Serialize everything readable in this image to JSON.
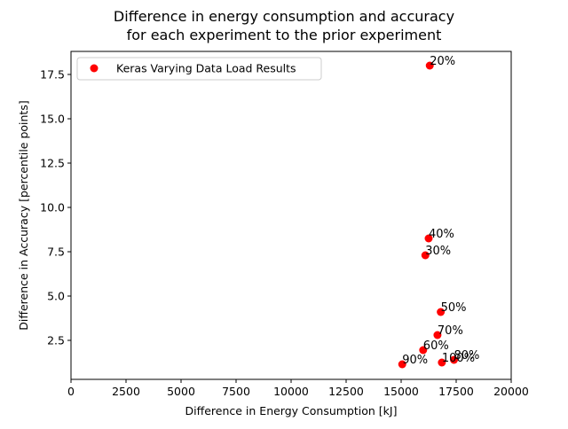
{
  "chart_data": {
    "type": "scatter",
    "title": [
      "Difference in energy consumption and accuracy",
      "for each experiment to the prior experiment"
    ],
    "xlabel": "Difference in Energy Consumption [kJ]",
    "ylabel": "Difference in Accuracy [percentile points]",
    "xlim": [
      0,
      20000
    ],
    "ylim": [
      0.3,
      18.8
    ],
    "xticks": [
      0,
      2500,
      5000,
      7500,
      10000,
      12500,
      15000,
      17500,
      20000
    ],
    "xtick_labels": [
      "0",
      "2500",
      "5000",
      "7500",
      "10000",
      "12500",
      "15000",
      "17500",
      "20000"
    ],
    "yticks": [
      2.5,
      5.0,
      7.5,
      10.0,
      12.5,
      15.0,
      17.5
    ],
    "ytick_labels": [
      "2.5",
      "5.0",
      "7.5",
      "10.0",
      "12.5",
      "15.0",
      "17.5"
    ],
    "grid": false,
    "legend": {
      "position": "upper-left",
      "entries": [
        "Keras Varying Data Load Results"
      ]
    },
    "marker_color": "#ff0000",
    "series": [
      {
        "name": "Keras Varying Data Load Results",
        "points": [
          {
            "x": 16300,
            "y": 18.0,
            "label": "20%"
          },
          {
            "x": 16100,
            "y": 7.3,
            "label": "30%"
          },
          {
            "x": 16250,
            "y": 8.25,
            "label": "40%"
          },
          {
            "x": 16800,
            "y": 4.1,
            "label": "50%"
          },
          {
            "x": 16000,
            "y": 1.95,
            "label": "60%"
          },
          {
            "x": 16650,
            "y": 2.8,
            "label": "70%"
          },
          {
            "x": 17400,
            "y": 1.4,
            "label": "80%"
          },
          {
            "x": 15050,
            "y": 1.15,
            "label": "90%"
          },
          {
            "x": 16850,
            "y": 1.25,
            "label": "100%"
          }
        ]
      }
    ]
  }
}
